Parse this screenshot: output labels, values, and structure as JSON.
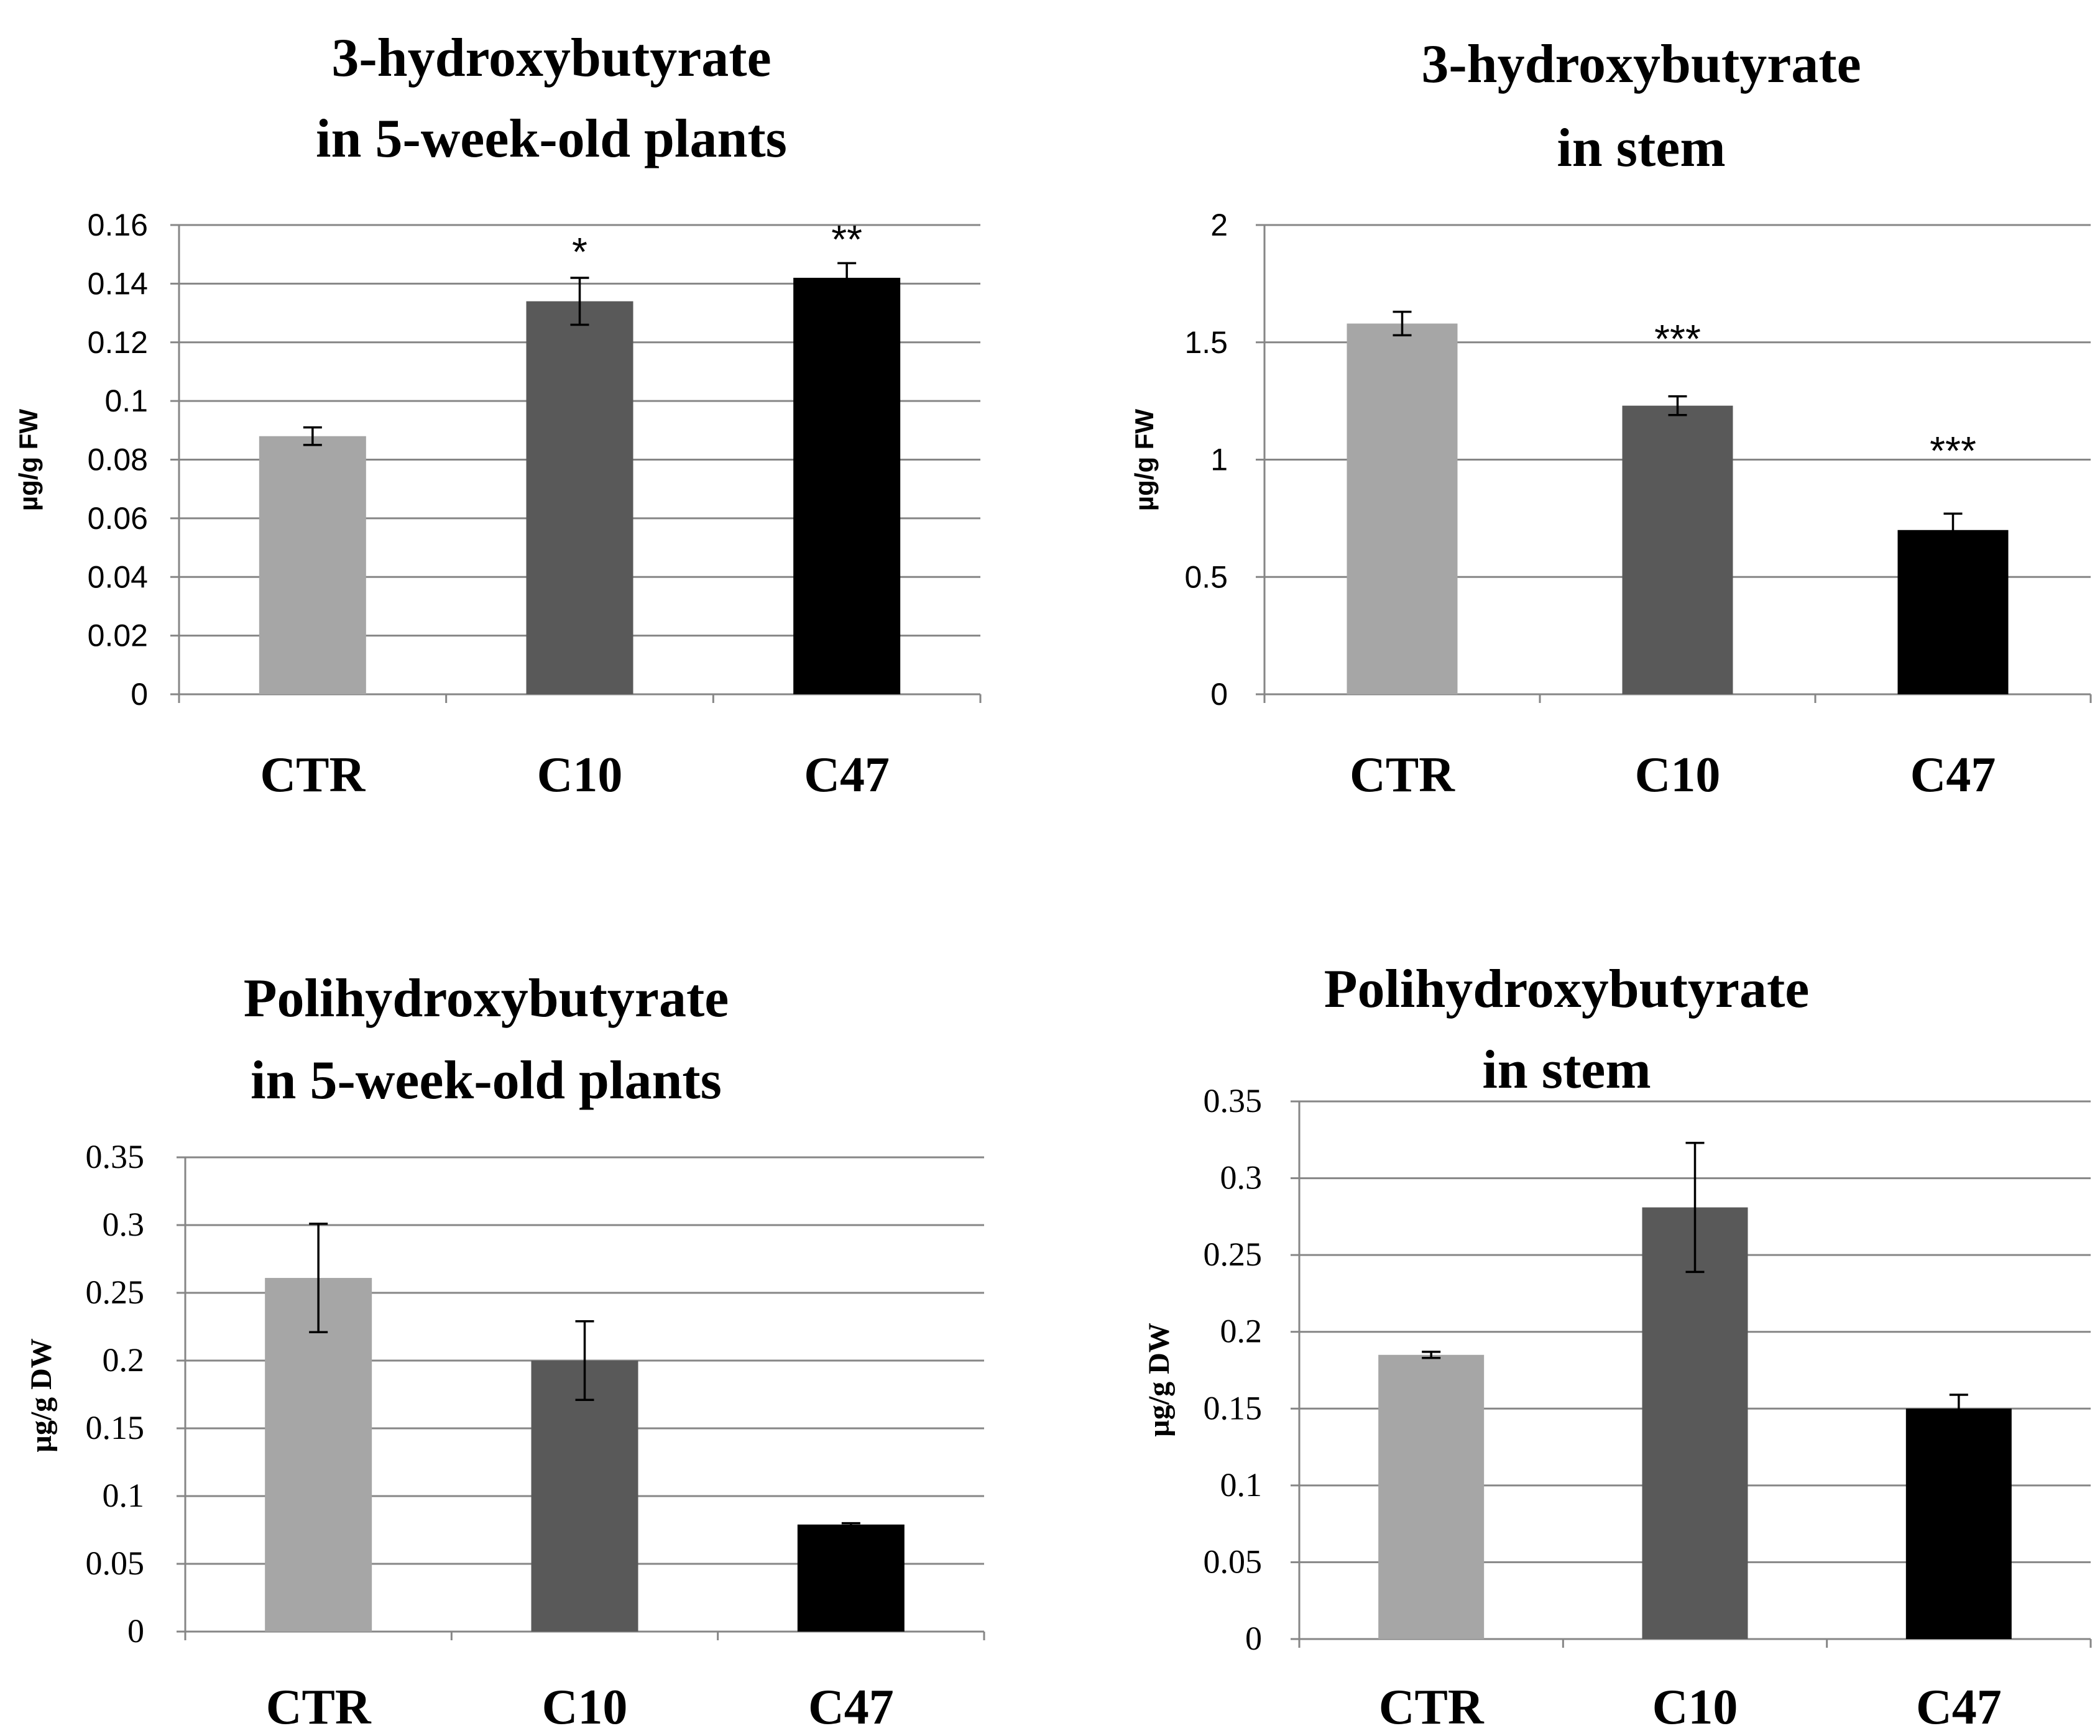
{
  "colors": {
    "CTR": "#a6a6a6",
    "C10": "#595959",
    "C47": "#000000",
    "grid": "#868686",
    "axis": "#868686"
  },
  "chart_data": [
    {
      "type": "bar",
      "title_lines": [
        "3-hydroxybutyrate",
        "in  5-week-old plants"
      ],
      "ylabel": "µg/g FW",
      "categories": [
        "CTR",
        "C10",
        "C47"
      ],
      "values": [
        0.088,
        0.134,
        0.142
      ],
      "errors": [
        0.003,
        0.008,
        0.005
      ],
      "significance": [
        "",
        "*",
        "**"
      ],
      "ylim": [
        0,
        0.16
      ],
      "yticks": [
        "0",
        "0.02",
        "0.04",
        "0.06",
        "0.08",
        "0.1",
        "0.12",
        "0.14",
        "0.16"
      ],
      "grid": true
    },
    {
      "type": "bar",
      "title_lines": [
        "3-hydroxybutyrate",
        "in stem"
      ],
      "ylabel": "µg/g FW",
      "categories": [
        "CTR",
        "C10",
        "C47"
      ],
      "values": [
        1.58,
        1.23,
        0.7
      ],
      "errors": [
        0.05,
        0.04,
        0.07
      ],
      "significance": [
        "",
        "***",
        "***"
      ],
      "ylim": [
        0,
        2
      ],
      "yticks": [
        "0",
        "0.5",
        "1",
        "1.5",
        "2"
      ],
      "grid": true
    },
    {
      "type": "bar",
      "title_lines": [
        "Polihydroxybutyrate",
        "in 5-week-old plants"
      ],
      "ylabel": "µg/g DW",
      "categories": [
        "CTR",
        "C10",
        "C47"
      ],
      "values": [
        0.261,
        0.2,
        0.079
      ],
      "errors": [
        0.04,
        0.029,
        0.001
      ],
      "significance": [
        "",
        "",
        ""
      ],
      "ylim": [
        0,
        0.35
      ],
      "yticks": [
        "0",
        "0.05",
        "0.1",
        "0.15",
        "0.2",
        "0.25",
        "0.3",
        "0.35"
      ],
      "grid": true
    },
    {
      "type": "bar",
      "title_lines": [
        "Polihydroxybutyrate",
        "in stem"
      ],
      "ylabel": "µg/g DW",
      "categories": [
        "CTR",
        "C10",
        "C47"
      ],
      "values": [
        0.185,
        0.281,
        0.15
      ],
      "errors": [
        0.002,
        0.042,
        0.009
      ],
      "significance": [
        "",
        "",
        ""
      ],
      "ylim": [
        0,
        0.35
      ],
      "yticks": [
        "0",
        "0.05",
        "0.1",
        "0.15",
        "0.2",
        "0.25",
        "0.3",
        "0.35"
      ],
      "grid": true
    }
  ]
}
